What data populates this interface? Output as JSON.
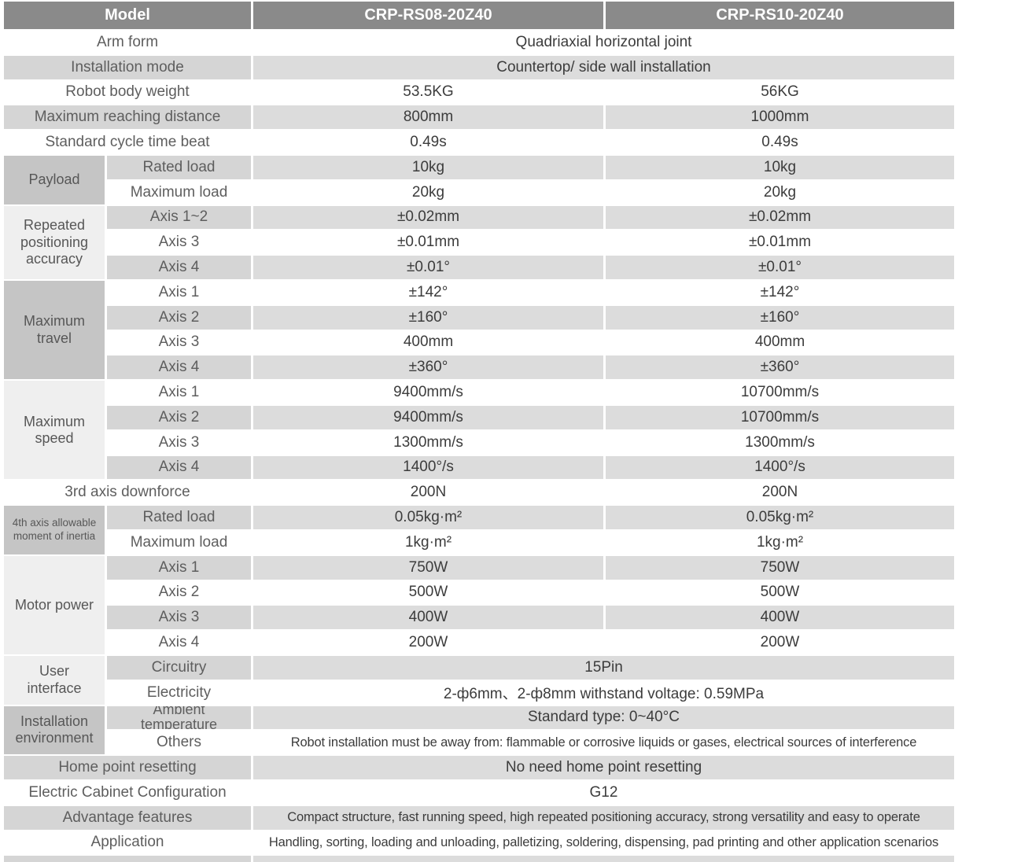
{
  "header": {
    "cells": [
      {
        "label": "Model"
      },
      {
        "label": "CRP-RS08-20Z40"
      },
      {
        "label": "CRP-RS10-20Z40"
      }
    ]
  },
  "colors": {
    "header_bg": "#8a8a8a",
    "header_text": "#ffffff",
    "stripe_label_gray": "#d5d5d5",
    "stripe_value_gray": "#dcdcdc",
    "group_dark": "#c5c5c5",
    "group_light": "#efefef",
    "label_text": "#5e5e5e",
    "value_text": "#3c3c3c"
  },
  "groups": [
    {
      "id": "group-payload",
      "label": "Payload",
      "start": 6,
      "span": 2,
      "tone": "dark"
    },
    {
      "id": "group-repeated-positioning-accuracy",
      "label": "Repeated positioning accuracy",
      "start": 8,
      "span": 3,
      "tone": "light"
    },
    {
      "id": "group-maximum-travel",
      "label": "Maximum travel",
      "start": 11,
      "span": 4,
      "tone": "dark"
    },
    {
      "id": "group-maximum-speed",
      "label": "Maximum speed",
      "start": 15,
      "span": 4,
      "tone": "light"
    },
    {
      "id": "group-4th-axis-inertia",
      "label": "4th axis allowable moment of inertia",
      "start": 20,
      "span": 2,
      "tone": "dark"
    },
    {
      "id": "group-motor-power",
      "label": "Motor power",
      "start": 22,
      "span": 4,
      "tone": "light"
    },
    {
      "id": "group-user-interface",
      "label": "User interface",
      "start": 26,
      "span": 2,
      "tone": "light"
    },
    {
      "id": "group-installation-environment",
      "label": "Installation environment",
      "start": 28,
      "span": 2,
      "tone": "dark"
    }
  ],
  "rows": [
    {
      "label": "Arm form",
      "merged": "Quadriaxial horizontal joint",
      "shade": "white"
    },
    {
      "label": "Installation mode",
      "merged": "Countertop/ side wall installation",
      "shade": "gray"
    },
    {
      "label": "Robot body weight",
      "v1": "53.5KG",
      "v2": "56KG",
      "shade": "white"
    },
    {
      "label": "Maximum reaching distance",
      "v1": "800mm",
      "v2": "1000mm",
      "shade": "gray"
    },
    {
      "label": "Standard cycle time beat",
      "v1": "0.49s",
      "v2": "0.49s",
      "shade": "white"
    },
    {
      "label": "Rated load",
      "sub": true,
      "v1": "10kg",
      "v2": "10kg",
      "shade": "gray"
    },
    {
      "label": "Maximum load",
      "sub": true,
      "v1": "20kg",
      "v2": "20kg",
      "shade": "white"
    },
    {
      "label": "Axis 1~2",
      "sub": true,
      "v1": "±0.02mm",
      "v2": "±0.02mm",
      "shade": "gray"
    },
    {
      "label": "Axis 3",
      "sub": true,
      "v1": "±0.01mm",
      "v2": "±0.01mm",
      "shade": "white"
    },
    {
      "label": "Axis 4",
      "sub": true,
      "v1": "±0.01°",
      "v2": "±0.01°",
      "shade": "gray"
    },
    {
      "label": "Axis 1",
      "sub": true,
      "v1": "±142°",
      "v2": "±142°",
      "shade": "white"
    },
    {
      "label": "Axis 2",
      "sub": true,
      "v1": "±160°",
      "v2": "±160°",
      "shade": "gray"
    },
    {
      "label": "Axis 3",
      "sub": true,
      "v1": "400mm",
      "v2": "400mm",
      "shade": "white"
    },
    {
      "label": "Axis 4",
      "sub": true,
      "v1": "±360°",
      "v2": "±360°",
      "shade": "gray"
    },
    {
      "label": "Axis 1",
      "sub": true,
      "v1": "9400mm/s",
      "v2": "10700mm/s",
      "shade": "white"
    },
    {
      "label": "Axis 2",
      "sub": true,
      "v1": "9400mm/s",
      "v2": "10700mm/s",
      "shade": "gray"
    },
    {
      "label": "Axis 3",
      "sub": true,
      "v1": "1300mm/s",
      "v2": "1300mm/s",
      "shade": "white"
    },
    {
      "label": "Axis 4",
      "sub": true,
      "v1": "1400°/s",
      "v2": "1400°/s",
      "shade": "gray"
    },
    {
      "label": "3rd axis downforce",
      "v1": "200N",
      "v2": "200N",
      "shade": "white"
    },
    {
      "label": "Rated load",
      "sub": true,
      "v1": "0.05kg·m²",
      "v2": "0.05kg·m²",
      "shade": "gray"
    },
    {
      "label": "Maximum load",
      "sub": true,
      "v1": "1kg·m²",
      "v2": "1kg·m²",
      "shade": "white"
    },
    {
      "label": "Axis 1",
      "sub": true,
      "v1": "750W",
      "v2": "750W",
      "shade": "gray"
    },
    {
      "label": "Axis 2",
      "sub": true,
      "v1": "500W",
      "v2": "500W",
      "shade": "white"
    },
    {
      "label": "Axis 3",
      "sub": true,
      "v1": "400W",
      "v2": "400W",
      "shade": "gray"
    },
    {
      "label": "Axis 4",
      "sub": true,
      "v1": "200W",
      "v2": "200W",
      "shade": "white"
    },
    {
      "label": "Circuitry",
      "sub": true,
      "merged": "15Pin",
      "shade": "gray"
    },
    {
      "label": "Electricity",
      "sub": true,
      "merged": "2-ф6mm、2-ф8mm withstand voltage: 0.59MPa",
      "shade": "white"
    },
    {
      "label": "Ambient temperature",
      "sub": true,
      "wrap": true,
      "merged": "Standard type:  0~40°C",
      "shade": "gray"
    },
    {
      "label": "Others",
      "sub": true,
      "long": true,
      "merged": "Robot installation must be away from: flammable or corrosive liquids or gases, electrical sources of interference",
      "shade": "white"
    },
    {
      "label": "Home point resetting",
      "merged": "No need home point resetting",
      "shade": "gray"
    },
    {
      "label": "Electric Cabinet Configuration",
      "merged": "G12",
      "shade": "white"
    },
    {
      "label": "Advantage features",
      "long": true,
      "merged": "Compact structure, fast running speed, high repeated positioning accuracy, strong versatility and easy to operate",
      "shade": "gray"
    },
    {
      "label": "Application",
      "long": true,
      "merged": "Handling, sorting, loading and unloading, palletizing, soldering, dispensing, pad printing and other application scenarios",
      "shade": "white"
    },
    {
      "label": "",
      "merged": "",
      "shade": "gray"
    }
  ]
}
